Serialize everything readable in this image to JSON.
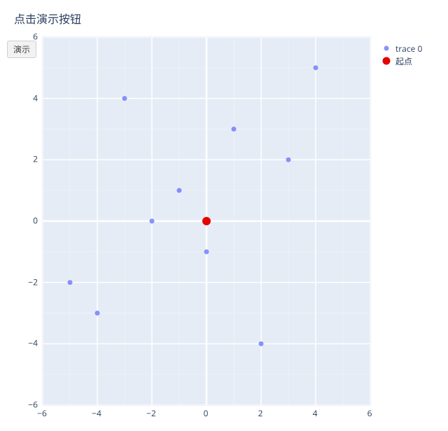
{
  "title": "点击演示按钮",
  "button_label": "演示",
  "chart": {
    "type": "scatter",
    "background_color": "#e5ecf6",
    "page_bg": "#ffffff",
    "grid_color": "#ffffff",
    "zero_line_color": "#ffffff",
    "text_color": "#2a3f5f",
    "title_fontsize": 16,
    "tick_fontsize": 12,
    "xlim": [
      -6,
      6
    ],
    "ylim": [
      -6,
      6
    ],
    "xticks": [
      -6,
      -4,
      -2,
      0,
      2,
      4,
      6
    ],
    "yticks": [
      -6,
      -4,
      -2,
      0,
      2,
      4,
      6
    ],
    "minor_step": 1,
    "series": [
      {
        "name": "trace 0",
        "color": "#636efa",
        "opacity": 0.75,
        "marker_size": 7,
        "points": [
          [
            -1,
            1
          ],
          [
            1,
            3
          ],
          [
            -2,
            0
          ],
          [
            -5,
            -2
          ],
          [
            2,
            -4
          ],
          [
            0,
            -1
          ],
          [
            3,
            2
          ],
          [
            -3,
            4
          ],
          [
            4,
            5
          ],
          [
            -4,
            -3
          ]
        ]
      },
      {
        "name": "起点",
        "color": "#e60000",
        "opacity": 1.0,
        "marker_size": 12,
        "points": [
          [
            0,
            0
          ]
        ]
      }
    ]
  },
  "legend": {
    "items": [
      {
        "label": "trace 0",
        "color": "#636efa",
        "size": 7,
        "opacity": 0.75
      },
      {
        "label": "起点",
        "color": "#e60000",
        "size": 11,
        "opacity": 1.0
      }
    ]
  }
}
